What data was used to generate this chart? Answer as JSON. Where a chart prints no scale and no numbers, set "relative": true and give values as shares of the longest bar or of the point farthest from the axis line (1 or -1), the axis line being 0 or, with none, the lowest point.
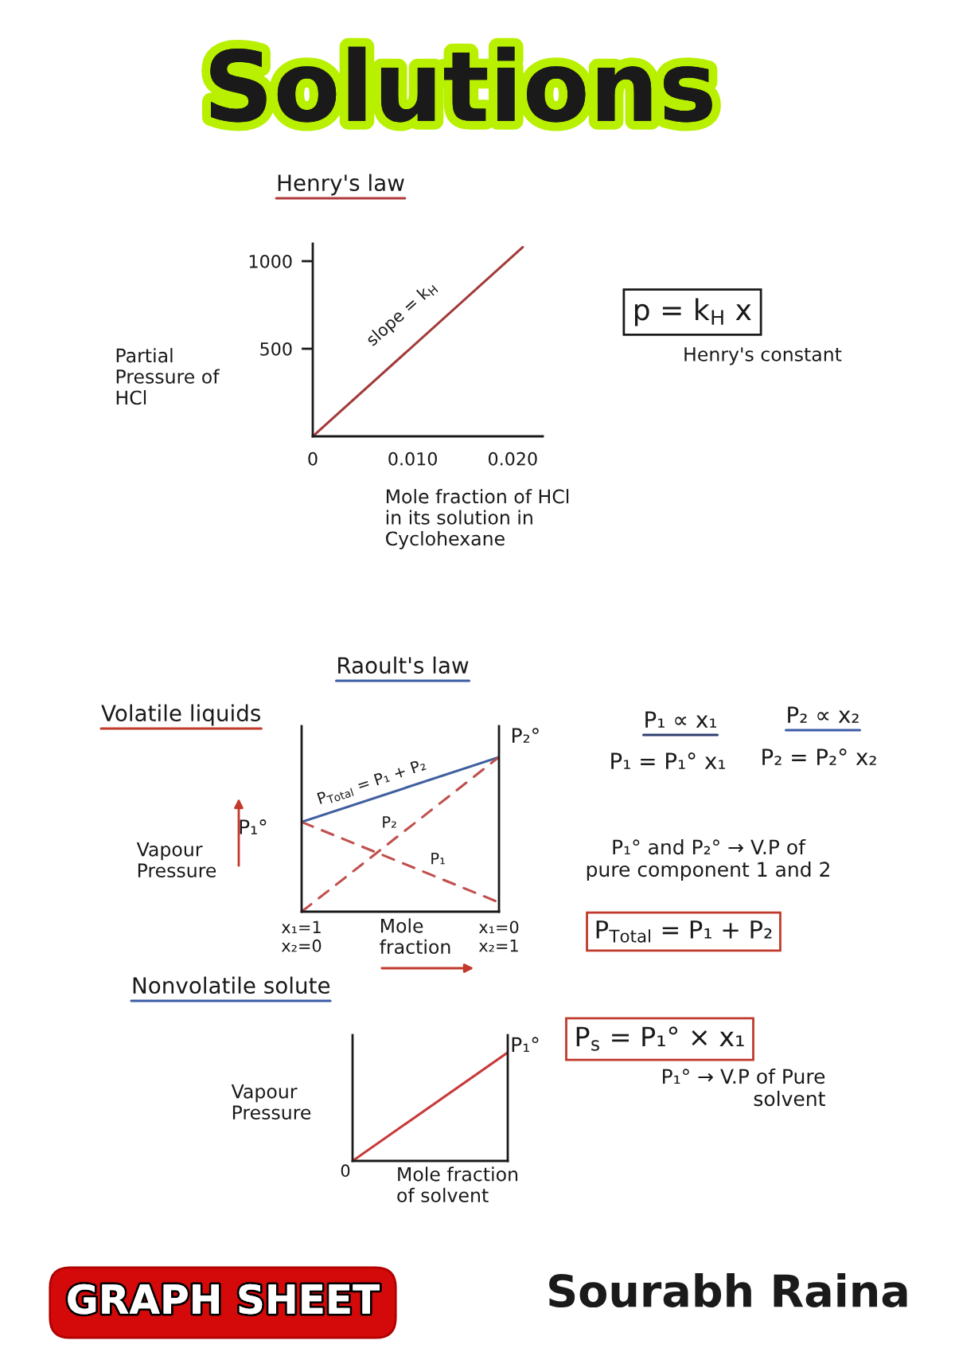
{
  "chart_data": [
    {
      "type": "line",
      "title": "Solutions",
      "subtitle": "Henry's law",
      "xlabel": "Mole fraction of HCl\nin its solution in\nCyclohexane",
      "ylabel": "Partial\nPressure of\nHCl",
      "x": [
        0,
        0.021
      ],
      "series": [
        {
          "color": "#a33a3a",
          "values": [
            0,
            1080
          ]
        }
      ],
      "xlim": [
        0,
        0.023
      ],
      "ylim": [
        0,
        1100
      ],
      "xticks": [
        0,
        {
          "value": 0.01,
          "label": "0.010"
        },
        {
          "value": 0.02,
          "label": "0.020"
        }
      ],
      "yticks": [
        500,
        1000
      ],
      "annotations": [
        {
          "text": "slope = k$_{H}$",
          "x": 0.011,
          "y": 566
        },
        "p = k$_{H}$ x",
        "Henry's constant"
      ]
    },
    {
      "type": "line",
      "relative": true,
      "title": "Raoult's law",
      "subtitle": "Volatile liquids",
      "xlabel": "Mole\nfraction",
      "ylabel": "Vapour\nPressure",
      "categories": [
        "x₁=1\nx₂=0",
        "x₁=0\nx₂=1"
      ],
      "series": [
        {
          "name": "P$_{Total}$ = P₁ + P₂",
          "color": "#3f5f9f",
          "values": [
            0.58,
            1
          ],
          "line_style": "solid"
        },
        {
          "name": "P₂",
          "color": "#c0504d",
          "values": [
            0,
            1
          ],
          "line_style": "dashed"
        },
        {
          "name": "P₁",
          "color": "#c0504d",
          "values": [
            0.58,
            0.06
          ],
          "line_style": "dashed"
        }
      ],
      "annotations": [
        {
          "text": "P₁°",
          "x": "x₁=1\nx₂=0",
          "y": 0.58
        },
        {
          "text": "P₂°",
          "x": "x₁=0\nx₂=1",
          "y": 1
        },
        "P₁ ∝ x₁",
        "P₂ ∝ x₂",
        "P₁ = P₁° x₁",
        "P₂ = P₂° x₂",
        "P₁° and P₂° → V.P of\npure component 1 and 2",
        "P$_{Total}$ = P₁ + P₂"
      ]
    },
    {
      "type": "line",
      "relative": true,
      "title": "Nonvolatile solute",
      "xlabel": "Mole fraction\nof solvent",
      "ylabel": "Vapour\nPressure",
      "categories": [
        null,
        null
      ],
      "series": [
        {
          "color": "#c83a3a",
          "values": [
            0,
            1
          ]
        }
      ],
      "annotations": [
        "P₁°",
        "0",
        "P$_{s}$ = P₁° × x₁",
        "P₁° → V.P of Pure\nsolvent",
        "GRAPH SHEET",
        "Sourabh Raina"
      ]
    }
  ]
}
